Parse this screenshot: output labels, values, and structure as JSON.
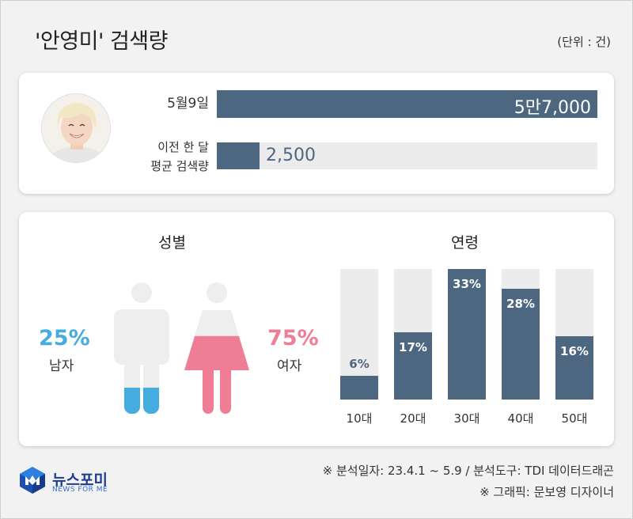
{
  "header": {
    "title": "'안영미' 검색량",
    "unit": "(단위 : 건)"
  },
  "search": {
    "today": {
      "label": "5월9일",
      "value": 57000,
      "value_text": "5만7,000"
    },
    "average": {
      "label_line1": "이전 한 달",
      "label_line2": "평균 검색량",
      "value": 2500,
      "value_text": "2,500"
    },
    "max": 57000
  },
  "gender": {
    "heading": "성별",
    "male": {
      "pct": 25,
      "pct_text": "25%",
      "label": "남자",
      "color": "#45acdf"
    },
    "female": {
      "pct": 75,
      "pct_text": "75%",
      "label": "여자",
      "color": "#f07d96"
    }
  },
  "age": {
    "heading": "연령"
  },
  "chart_data": [
    {
      "type": "bar",
      "categories": [
        "5월9일",
        "이전 한 달 평균 검색량"
      ],
      "values": [
        57000,
        2500
      ],
      "title": "'안영미' 검색량",
      "ylabel": "(단위 : 건)"
    },
    {
      "type": "pie",
      "categories": [
        "남자",
        "여자"
      ],
      "values": [
        25,
        75
      ],
      "title": "성별"
    },
    {
      "type": "bar",
      "categories": [
        "10대",
        "20대",
        "30대",
        "40대",
        "50대"
      ],
      "values": [
        6,
        17,
        33,
        28,
        16
      ],
      "labels": [
        "6%",
        "17%",
        "33%",
        "28%",
        "16%"
      ],
      "title": "연령",
      "ylim": [
        0,
        33
      ]
    }
  ],
  "footer": {
    "logo_name": "뉴스포미",
    "logo_sub": "NEWS FOR ME",
    "source": "※ 분석일자: 23.4.1 ~ 5.9  / 분석도구: TDI 데이터드래곤",
    "credit": "※ 그래픽: 문보영 디자이너"
  },
  "colors": {
    "bar": "#4d6781",
    "track": "#ececec",
    "male": "#45acdf",
    "female": "#f07d96",
    "figure": "#eeeeee"
  }
}
